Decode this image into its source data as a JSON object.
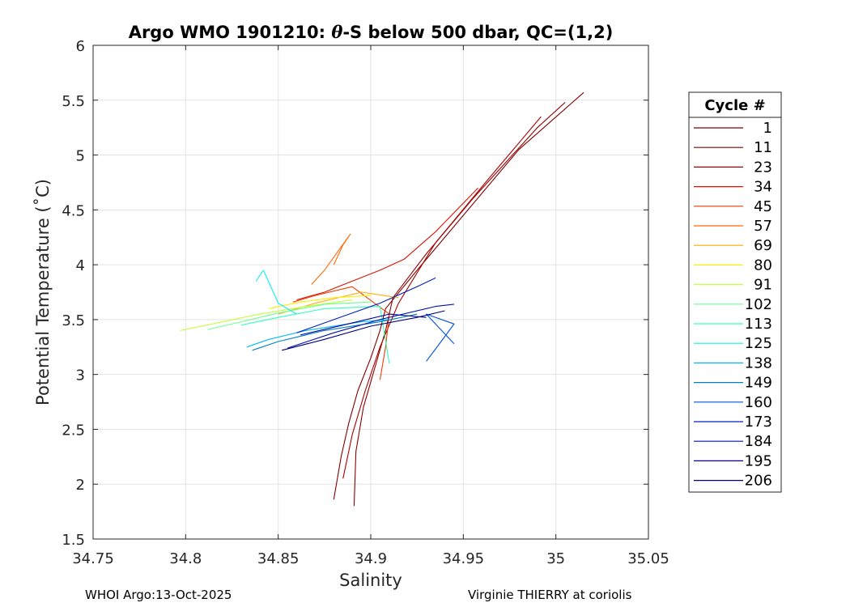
{
  "chart_data": {
    "type": "line",
    "title_parts": [
      "Argo WMO 1901210: ",
      "θ",
      "-S below 500 dbar,  QC=(1,2)"
    ],
    "xlabel": "Salinity",
    "ylabel": "Potential Temperature (˚C)",
    "xlim": [
      34.75,
      35.05
    ],
    "ylim": [
      1.5,
      6
    ],
    "xticks": [
      34.75,
      34.8,
      34.85,
      34.9,
      34.95,
      35,
      35.05
    ],
    "xtick_labels": [
      "34.75",
      "34.8",
      "34.85",
      "34.9",
      "34.95",
      "35",
      "35.05"
    ],
    "yticks": [
      1.5,
      2,
      2.5,
      3,
      3.5,
      4,
      4.5,
      5,
      5.5,
      6
    ],
    "ytick_labels": [
      "1.5",
      "2",
      "2.5",
      "3",
      "3.5",
      "4",
      "4.5",
      "5",
      "5.5",
      "6"
    ],
    "grid": true,
    "legend_title": "Cycle #",
    "legend_position": "right",
    "legend": [
      {
        "label": "1",
        "color": "#800000"
      },
      {
        "label": "11",
        "color": "#8f0000"
      },
      {
        "label": "23",
        "color": "#a80000"
      },
      {
        "label": "34",
        "color": "#d41400"
      },
      {
        "label": "45",
        "color": "#ee3d00"
      },
      {
        "label": "57",
        "color": "#ff6800"
      },
      {
        "label": "69",
        "color": "#ffaa00"
      },
      {
        "label": "80",
        "color": "#ffee00"
      },
      {
        "label": "91",
        "color": "#c2ff3d"
      },
      {
        "label": "102",
        "color": "#6eff8a"
      },
      {
        "label": "113",
        "color": "#33ffbf"
      },
      {
        "label": "125",
        "color": "#10f0ee"
      },
      {
        "label": "138",
        "color": "#00b8ff"
      },
      {
        "label": "149",
        "color": "#0080c0"
      },
      {
        "label": "160",
        "color": "#0050e0"
      },
      {
        "label": "173",
        "color": "#0020c0"
      },
      {
        "label": "184",
        "color": "#0010a8"
      },
      {
        "label": "195",
        "color": "#000098"
      },
      {
        "label": "206",
        "color": "#000080"
      }
    ],
    "series": [
      {
        "name": "1",
        "color": "#800000",
        "points": [
          [
            34.88,
            1.86
          ],
          [
            34.884,
            2.25
          ],
          [
            34.888,
            2.55
          ],
          [
            34.893,
            2.85
          ],
          [
            34.9,
            3.15
          ],
          [
            34.905,
            3.4
          ],
          [
            34.908,
            3.6
          ],
          [
            34.925,
            3.95
          ],
          [
            34.95,
            4.45
          ],
          [
            34.98,
            5.05
          ],
          [
            35.015,
            5.57
          ]
        ]
      },
      {
        "name": "11",
        "color": "#8f0000",
        "points": [
          [
            34.891,
            1.8
          ],
          [
            34.892,
            2.3
          ],
          [
            34.896,
            2.7
          ],
          [
            34.902,
            3.05
          ],
          [
            34.908,
            3.4
          ],
          [
            34.912,
            3.7
          ],
          [
            34.93,
            4.1
          ],
          [
            34.955,
            4.6
          ],
          [
            34.99,
            5.25
          ],
          [
            35.005,
            5.48
          ]
        ]
      },
      {
        "name": "23",
        "color": "#a80000",
        "points": [
          [
            34.885,
            2.05
          ],
          [
            34.89,
            2.45
          ],
          [
            34.897,
            2.85
          ],
          [
            34.905,
            3.25
          ],
          [
            34.915,
            3.65
          ],
          [
            34.935,
            4.2
          ],
          [
            34.962,
            4.75
          ],
          [
            34.992,
            5.35
          ]
        ]
      },
      {
        "name": "34",
        "color": "#d41400",
        "points": [
          [
            34.86,
            3.68
          ],
          [
            34.875,
            3.75
          ],
          [
            34.89,
            3.85
          ],
          [
            34.905,
            3.95
          ],
          [
            34.918,
            4.05
          ],
          [
            34.935,
            4.3
          ],
          [
            34.958,
            4.7
          ]
        ]
      },
      {
        "name": "45",
        "color": "#ee3d00",
        "points": [
          [
            34.905,
            2.95
          ],
          [
            34.908,
            3.25
          ],
          [
            34.91,
            3.55
          ],
          [
            34.89,
            3.8
          ],
          [
            34.87,
            3.72
          ],
          [
            34.858,
            3.66
          ]
        ]
      },
      {
        "name": "57",
        "color": "#ff6800",
        "points": [
          [
            34.88,
            4.0
          ],
          [
            34.885,
            4.18
          ],
          [
            34.889,
            4.28
          ],
          [
            34.875,
            3.95
          ],
          [
            34.868,
            3.82
          ]
        ]
      },
      {
        "name": "69",
        "color": "#ffaa00",
        "points": [
          [
            34.85,
            3.55
          ],
          [
            34.87,
            3.65
          ],
          [
            34.895,
            3.75
          ],
          [
            34.915,
            3.7
          ]
        ]
      },
      {
        "name": "80",
        "color": "#ffee00",
        "points": [
          [
            34.845,
            3.6
          ],
          [
            34.862,
            3.66
          ],
          [
            34.88,
            3.7
          ],
          [
            34.9,
            3.72
          ]
        ]
      },
      {
        "name": "91",
        "color": "#c2ff3d",
        "points": [
          [
            34.797,
            3.4
          ],
          [
            34.82,
            3.48
          ],
          [
            34.84,
            3.55
          ],
          [
            34.865,
            3.62
          ],
          [
            34.89,
            3.68
          ]
        ]
      },
      {
        "name": "102",
        "color": "#6eff8a",
        "points": [
          [
            34.812,
            3.41
          ],
          [
            34.83,
            3.48
          ],
          [
            34.85,
            3.56
          ],
          [
            34.875,
            3.64
          ],
          [
            34.9,
            3.66
          ]
        ]
      },
      {
        "name": "113",
        "color": "#33ffbf",
        "points": [
          [
            34.83,
            3.45
          ],
          [
            34.85,
            3.52
          ],
          [
            34.875,
            3.6
          ],
          [
            34.905,
            3.62
          ],
          [
            34.91,
            3.1
          ]
        ]
      },
      {
        "name": "125",
        "color": "#10f0ee",
        "points": [
          [
            34.838,
            3.85
          ],
          [
            34.842,
            3.95
          ],
          [
            34.85,
            3.65
          ],
          [
            34.86,
            3.55
          ]
        ]
      },
      {
        "name": "138",
        "color": "#00b8ff",
        "points": [
          [
            34.833,
            3.25
          ],
          [
            34.845,
            3.32
          ],
          [
            34.865,
            3.4
          ],
          [
            34.895,
            3.48
          ],
          [
            34.91,
            3.5
          ]
        ]
      },
      {
        "name": "149",
        "color": "#0080c0",
        "points": [
          [
            34.836,
            3.22
          ],
          [
            34.85,
            3.3
          ],
          [
            34.875,
            3.4
          ],
          [
            34.905,
            3.48
          ],
          [
            34.925,
            3.55
          ]
        ]
      },
      {
        "name": "160",
        "color": "#0050e0",
        "points": [
          [
            34.93,
            3.12
          ],
          [
            34.938,
            3.3
          ],
          [
            34.945,
            3.46
          ],
          [
            34.93,
            3.55
          ],
          [
            34.945,
            3.28
          ]
        ]
      },
      {
        "name": "173",
        "color": "#0020c0",
        "points": [
          [
            34.86,
            3.38
          ],
          [
            34.88,
            3.5
          ],
          [
            34.905,
            3.65
          ],
          [
            34.925,
            3.8
          ],
          [
            34.935,
            3.88
          ]
        ]
      },
      {
        "name": "184",
        "color": "#0010a8",
        "points": [
          [
            34.855,
            3.24
          ],
          [
            34.88,
            3.38
          ],
          [
            34.905,
            3.5
          ],
          [
            34.935,
            3.62
          ],
          [
            34.945,
            3.64
          ]
        ]
      },
      {
        "name": "195",
        "color": "#000098",
        "points": [
          [
            34.862,
            3.36
          ],
          [
            34.885,
            3.45
          ],
          [
            34.91,
            3.55
          ],
          [
            34.93,
            3.52
          ]
        ]
      },
      {
        "name": "206",
        "color": "#000080",
        "points": [
          [
            34.852,
            3.22
          ],
          [
            34.875,
            3.32
          ],
          [
            34.9,
            3.44
          ],
          [
            34.925,
            3.52
          ],
          [
            34.94,
            3.58
          ]
        ]
      }
    ]
  },
  "footer": {
    "left": "WHOI Argo:13-Oct-2025",
    "right": "Virginie THIERRY at coriolis"
  }
}
